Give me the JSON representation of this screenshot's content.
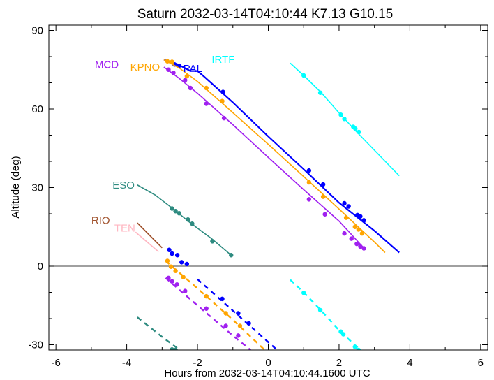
{
  "chart_data": {
    "type": "line",
    "title": "Saturn 2032-03-14T04:10:44  K7.13  G10.15",
    "xlabel": "Hours from 2032-03-14T04:10:44.1600 UTC",
    "ylabel": "Altitude (deg)",
    "xlim": [
      -6.2,
      6.2
    ],
    "ylim": [
      -32,
      92
    ],
    "xticks": [
      -6,
      -4,
      -2,
      0,
      2,
      4,
      6
    ],
    "xtick_labels": [
      "-6",
      "-4",
      "-2",
      "0",
      "2",
      "4",
      "6"
    ],
    "yticks": [
      -30,
      0,
      30,
      60,
      90
    ],
    "ytick_labels": [
      "-30",
      "0",
      "30",
      "60",
      "90"
    ],
    "zero_line": true,
    "grid": false,
    "series": [
      {
        "name": "IRTF",
        "color": "#00FFFF",
        "label_pos": [
          -1.6,
          79
        ],
        "solid": [
          [
            0.62,
            77.5
          ],
          [
            1.0,
            72.8
          ],
          [
            1.5,
            66.2
          ],
          [
            2.0,
            58.5
          ],
          [
            2.5,
            51.2
          ],
          [
            3.7,
            34.5
          ]
        ],
        "dashed": [
          [
            0.62,
            -5.2
          ],
          [
            1.0,
            -10.0
          ],
          [
            1.5,
            -17.0
          ],
          [
            2.0,
            -24.5
          ],
          [
            2.6,
            -32
          ]
        ],
        "points": [
          [
            1.0,
            72.8
          ],
          [
            1.47,
            66.2
          ],
          [
            2.05,
            57.8
          ],
          [
            2.15,
            56.2
          ],
          [
            2.4,
            53.2
          ],
          [
            2.46,
            52.5
          ],
          [
            2.56,
            51.2
          ],
          [
            1.0,
            -10.2
          ],
          [
            1.47,
            -16.8
          ],
          [
            2.05,
            -25.0
          ],
          [
            2.12,
            -26.0
          ],
          [
            2.45,
            -30.8
          ],
          [
            2.55,
            -32
          ]
        ]
      },
      {
        "name": "PAL",
        "color": "#0000FF",
        "label_pos": [
          -2.4,
          75.5
        ],
        "solid": [
          [
            -2.95,
            78.8
          ],
          [
            -2.55,
            77.0
          ],
          [
            -2.2,
            74.5
          ],
          [
            -2.0,
            74.5
          ],
          [
            -1.8,
            72.2
          ],
          [
            -1.0,
            62.5
          ],
          [
            0.0,
            49.5
          ],
          [
            1.0,
            37.0
          ],
          [
            2.0,
            24.2
          ],
          [
            3.0,
            13.5
          ],
          [
            3.7,
            5.2
          ]
        ],
        "dashed": [
          [
            -2.0,
            -5.0
          ],
          [
            -1.0,
            -17.0
          ],
          [
            0.25,
            -32.0
          ]
        ],
        "points": [
          [
            -2.65,
            77.0
          ],
          [
            -2.52,
            76.5
          ],
          [
            -1.28,
            66.5
          ],
          [
            1.15,
            36.5
          ],
          [
            1.55,
            31.2
          ],
          [
            2.15,
            24.0
          ],
          [
            2.27,
            22.8
          ],
          [
            2.52,
            19.5
          ],
          [
            2.6,
            19.0
          ],
          [
            2.7,
            17.5
          ],
          [
            -2.8,
            6.2
          ],
          [
            -2.72,
            4.8
          ],
          [
            -2.57,
            4.2
          ],
          [
            -2.45,
            1.5
          ],
          [
            -2.3,
            0.8
          ],
          [
            -1.3,
            -12.5
          ],
          [
            -0.85,
            -18.0
          ],
          [
            -0.55,
            -21.8
          ]
        ]
      },
      {
        "name": "KPNO",
        "color": "#FFA500",
        "label_pos": [
          -3.9,
          76
        ],
        "solid": [
          [
            -2.95,
            78.8
          ],
          [
            -2.5,
            75.5
          ],
          [
            -2.0,
            70.5
          ],
          [
            -1.2,
            61.0
          ],
          [
            0.0,
            46.5
          ],
          [
            1.0,
            34.2
          ],
          [
            2.0,
            21.8
          ],
          [
            3.0,
            9.2
          ],
          [
            3.3,
            5.2
          ]
        ],
        "dashed": [
          [
            -2.9,
            2.0
          ],
          [
            -2.0,
            -8.5
          ],
          [
            -1.0,
            -20.5
          ],
          [
            -0.1,
            -32.0
          ]
        ],
        "points": [
          [
            -2.85,
            78.2
          ],
          [
            -2.72,
            78.0
          ],
          [
            -2.3,
            72.5
          ],
          [
            -1.75,
            68.0
          ],
          [
            -1.3,
            63.0
          ],
          [
            1.15,
            32.0
          ],
          [
            1.55,
            26.5
          ],
          [
            2.2,
            18.5
          ],
          [
            2.45,
            15.0
          ],
          [
            2.55,
            14.0
          ],
          [
            2.65,
            12.5
          ],
          [
            -2.85,
            2.0
          ],
          [
            -2.75,
            -0.2
          ],
          [
            -2.62,
            -1.8
          ],
          [
            -2.4,
            -4.2
          ],
          [
            -1.75,
            -11.5
          ],
          [
            -1.2,
            -18.0
          ],
          [
            -0.8,
            -22.8
          ]
        ]
      },
      {
        "name": "MCD",
        "color": "#A020F0",
        "label_pos": [
          -4.9,
          77
        ],
        "solid": [
          [
            -2.95,
            76.0
          ],
          [
            -2.5,
            71.5
          ],
          [
            -2.0,
            66.0
          ],
          [
            -1.0,
            54.0
          ],
          [
            0.0,
            41.5
          ],
          [
            1.0,
            29.2
          ],
          [
            2.0,
            17.2
          ],
          [
            2.75,
            6.2
          ]
        ],
        "dashed": [
          [
            -2.9,
            -4.5
          ],
          [
            -2.0,
            -15.0
          ],
          [
            -1.0,
            -26.5
          ],
          [
            -0.5,
            -32.0
          ]
        ],
        "points": [
          [
            -2.82,
            75.0
          ],
          [
            -2.68,
            73.8
          ],
          [
            -2.35,
            71.0
          ],
          [
            -2.2,
            68.0
          ],
          [
            -1.75,
            62.0
          ],
          [
            -1.25,
            56.5
          ],
          [
            1.15,
            25.5
          ],
          [
            1.6,
            19.8
          ],
          [
            2.15,
            12.5
          ],
          [
            2.35,
            10.5
          ],
          [
            2.5,
            8.5
          ],
          [
            2.6,
            7.5
          ],
          [
            2.7,
            6.8
          ],
          [
            -2.82,
            -4.5
          ],
          [
            -2.72,
            -5.8
          ],
          [
            -2.58,
            -7.0
          ],
          [
            -2.35,
            -9.5
          ],
          [
            -1.75,
            -16.2
          ],
          [
            -1.2,
            -22.8
          ],
          [
            -0.85,
            -26.5
          ]
        ]
      },
      {
        "name": "ESO",
        "color": "#2E8B80",
        "label_pos": [
          -4.4,
          31
        ],
        "solid": [
          [
            -3.7,
            31.0
          ],
          [
            -3.2,
            27.2
          ],
          [
            -2.7,
            22.0
          ],
          [
            -2.2,
            16.5
          ],
          [
            -1.6,
            10.5
          ],
          [
            -1.05,
            4.2
          ]
        ],
        "dashed": [
          [
            -3.7,
            -19.5
          ],
          [
            -3.0,
            -27.0
          ],
          [
            -2.5,
            -32.0
          ]
        ],
        "points": [
          [
            -2.72,
            22.0
          ],
          [
            -2.62,
            21.0
          ],
          [
            -2.52,
            20.2
          ],
          [
            -2.27,
            17.8
          ],
          [
            -2.15,
            16.2
          ],
          [
            -1.58,
            9.5
          ],
          [
            -1.05,
            4.2
          ],
          [
            -2.72,
            -31.8
          ],
          [
            -2.62,
            -32.0
          ]
        ]
      },
      {
        "name": "RIO",
        "color": "#A0522D",
        "label_pos": [
          -5.0,
          17.5
        ],
        "solid": [
          [
            -3.7,
            16.5
          ],
          [
            -3.0,
            7.0
          ]
        ],
        "dashed": [],
        "points": []
      },
      {
        "name": "TEN",
        "color": "#FFB6C1",
        "label_pos": [
          -4.35,
          14.5
        ],
        "solid": [
          [
            -3.75,
            13.0
          ],
          [
            -3.1,
            5.5
          ]
        ],
        "dashed": [],
        "points": []
      }
    ]
  }
}
